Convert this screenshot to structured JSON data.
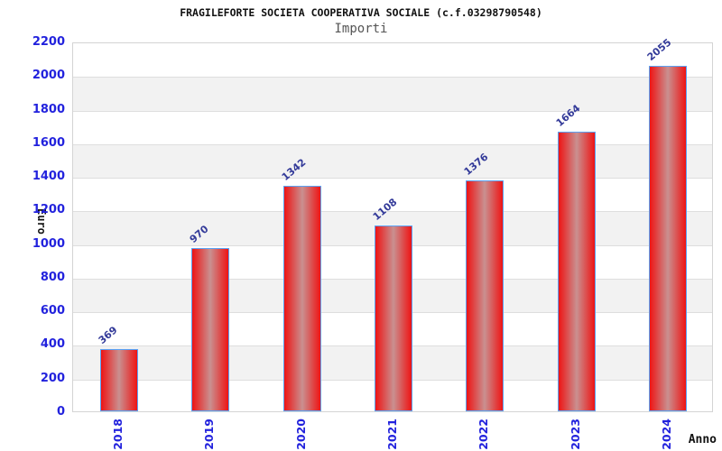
{
  "chart_data": {
    "type": "bar",
    "title": "FRAGILEFORTE SOCIETA COOPERATIVA SOCIALE (c.f.03298790548)",
    "subtitle": "Importi",
    "xlabel": "Anno",
    "ylabel": "Euro",
    "categories": [
      "2018",
      "2019",
      "2020",
      "2021",
      "2022",
      "2023",
      "2024"
    ],
    "values": [
      369,
      970,
      1342,
      1108,
      1376,
      1664,
      2055
    ],
    "ylim": [
      0,
      2200
    ],
    "ytick_step": 200,
    "legend": "none",
    "grid": "alternating-horizontal-bands",
    "colors": {
      "bar_edge": "#ee1414",
      "bar_mid": "#c99090",
      "bar_border": "#5aa2f5",
      "axis_tick_label": "#2222dd",
      "value_label": "#333a99",
      "band_fill": "#f2f2f2",
      "gridline": "#dedede",
      "plot_border": "#d4d4d4",
      "title_color": "#111111",
      "subtitle_color": "#555555"
    }
  }
}
